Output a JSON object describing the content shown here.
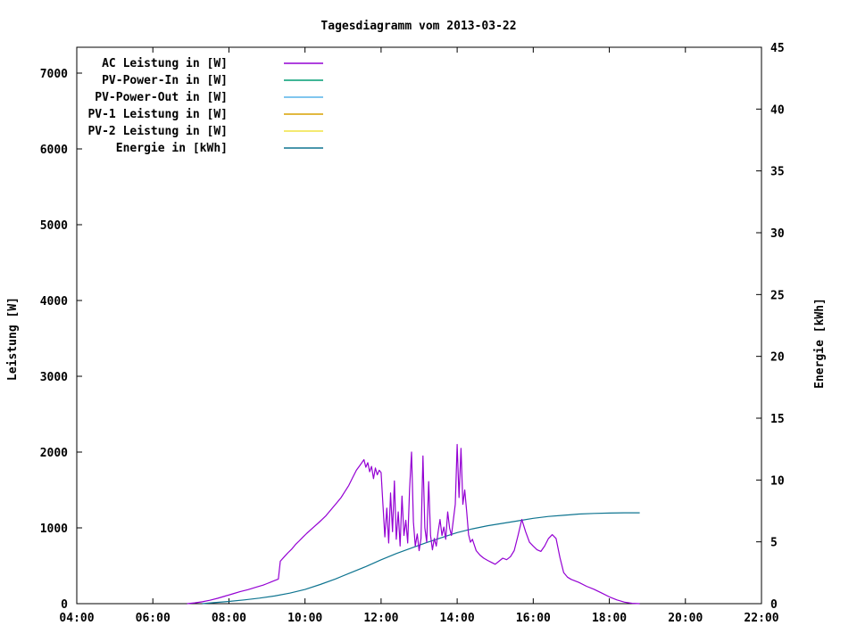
{
  "chart": {
    "title": "Tagesdiagramm vom 2013-03-22",
    "left_axis": {
      "label": "Leistung [W]",
      "ticks": [
        0,
        1000,
        2000,
        3000,
        4000,
        5000,
        6000,
        7000
      ]
    },
    "right_axis": {
      "label": "Energie [kWh]",
      "ticks": [
        0,
        5,
        10,
        15,
        20,
        25,
        30,
        35,
        40,
        45
      ]
    },
    "x_axis": {
      "tick_hours": [
        4,
        6,
        8,
        10,
        12,
        14,
        16,
        18,
        20,
        22
      ],
      "tick_labels": [
        "04:00",
        "06:00",
        "08:00",
        "10:00",
        "12:00",
        "14:00",
        "16:00",
        "18:00",
        "20:00",
        "22:00"
      ]
    }
  },
  "chart_data": {
    "type": "line",
    "title": "Tagesdiagramm vom 2013-03-22",
    "xlabel": "",
    "ylabel_left": "Leistung [W]",
    "ylabel_right": "Energie [kWh]",
    "x_range_hours": [
      4,
      22
    ],
    "left_range": [
      0,
      7350
    ],
    "right_range": [
      0,
      45
    ],
    "grid": false,
    "legend_position": "top-left-inside",
    "series": [
      {
        "name": "AC Leistung in [W]",
        "color": "#9400D3",
        "axis": "left",
        "points": [
          [
            6.9,
            0
          ],
          [
            7.1,
            10
          ],
          [
            7.3,
            25
          ],
          [
            7.5,
            45
          ],
          [
            7.7,
            70
          ],
          [
            7.9,
            100
          ],
          [
            8.1,
            130
          ],
          [
            8.3,
            160
          ],
          [
            8.5,
            185
          ],
          [
            8.7,
            215
          ],
          [
            8.9,
            245
          ],
          [
            9.0,
            265
          ],
          [
            9.1,
            285
          ],
          [
            9.2,
            305
          ],
          [
            9.3,
            325
          ],
          [
            9.35,
            560
          ],
          [
            9.45,
            615
          ],
          [
            9.55,
            670
          ],
          [
            9.65,
            720
          ],
          [
            9.75,
            780
          ],
          [
            9.85,
            830
          ],
          [
            9.95,
            880
          ],
          [
            10.05,
            930
          ],
          [
            10.15,
            975
          ],
          [
            10.25,
            1020
          ],
          [
            10.35,
            1065
          ],
          [
            10.45,
            1110
          ],
          [
            10.55,
            1160
          ],
          [
            10.65,
            1220
          ],
          [
            10.75,
            1280
          ],
          [
            10.85,
            1340
          ],
          [
            10.95,
            1400
          ],
          [
            11.05,
            1480
          ],
          [
            11.15,
            1560
          ],
          [
            11.25,
            1660
          ],
          [
            11.35,
            1760
          ],
          [
            11.45,
            1830
          ],
          [
            11.55,
            1900
          ],
          [
            11.6,
            1800
          ],
          [
            11.65,
            1860
          ],
          [
            11.7,
            1740
          ],
          [
            11.75,
            1810
          ],
          [
            11.8,
            1650
          ],
          [
            11.85,
            1790
          ],
          [
            11.9,
            1700
          ],
          [
            11.95,
            1760
          ],
          [
            12.0,
            1730
          ],
          [
            12.05,
            1300
          ],
          [
            12.1,
            880
          ],
          [
            12.15,
            1260
          ],
          [
            12.2,
            800
          ],
          [
            12.25,
            1460
          ],
          [
            12.3,
            950
          ],
          [
            12.35,
            1620
          ],
          [
            12.4,
            850
          ],
          [
            12.45,
            1210
          ],
          [
            12.5,
            760
          ],
          [
            12.55,
            1420
          ],
          [
            12.6,
            900
          ],
          [
            12.65,
            1100
          ],
          [
            12.7,
            800
          ],
          [
            12.75,
            1510
          ],
          [
            12.8,
            2000
          ],
          [
            12.85,
            1080
          ],
          [
            12.9,
            760
          ],
          [
            12.95,
            920
          ],
          [
            13.0,
            700
          ],
          [
            13.05,
            860
          ],
          [
            13.1,
            1950
          ],
          [
            13.15,
            1000
          ],
          [
            13.2,
            810
          ],
          [
            13.25,
            1610
          ],
          [
            13.3,
            900
          ],
          [
            13.35,
            710
          ],
          [
            13.4,
            860
          ],
          [
            13.45,
            760
          ],
          [
            13.5,
            950
          ],
          [
            13.55,
            1110
          ],
          [
            13.6,
            900
          ],
          [
            13.65,
            1010
          ],
          [
            13.7,
            850
          ],
          [
            13.75,
            1210
          ],
          [
            13.8,
            1000
          ],
          [
            13.85,
            900
          ],
          [
            13.9,
            1110
          ],
          [
            13.95,
            1310
          ],
          [
            14.0,
            2100
          ],
          [
            14.05,
            1400
          ],
          [
            14.1,
            2050
          ],
          [
            14.15,
            1310
          ],
          [
            14.2,
            1500
          ],
          [
            14.25,
            1210
          ],
          [
            14.3,
            910
          ],
          [
            14.35,
            810
          ],
          [
            14.4,
            850
          ],
          [
            14.5,
            700
          ],
          [
            14.6,
            640
          ],
          [
            14.7,
            600
          ],
          [
            14.8,
            570
          ],
          [
            14.9,
            545
          ],
          [
            15.0,
            520
          ],
          [
            15.1,
            560
          ],
          [
            15.2,
            600
          ],
          [
            15.3,
            580
          ],
          [
            15.4,
            620
          ],
          [
            15.5,
            700
          ],
          [
            15.6,
            900
          ],
          [
            15.7,
            1110
          ],
          [
            15.8,
            950
          ],
          [
            15.9,
            810
          ],
          [
            16.0,
            760
          ],
          [
            16.1,
            710
          ],
          [
            16.2,
            690
          ],
          [
            16.3,
            760
          ],
          [
            16.4,
            860
          ],
          [
            16.5,
            910
          ],
          [
            16.6,
            860
          ],
          [
            16.7,
            610
          ],
          [
            16.8,
            410
          ],
          [
            16.9,
            350
          ],
          [
            17.0,
            320
          ],
          [
            17.2,
            280
          ],
          [
            17.4,
            230
          ],
          [
            17.6,
            190
          ],
          [
            17.8,
            140
          ],
          [
            18.0,
            90
          ],
          [
            18.2,
            50
          ],
          [
            18.4,
            20
          ],
          [
            18.6,
            5
          ],
          [
            18.8,
            0
          ]
        ]
      },
      {
        "name": "PV-Power-In in [W]",
        "color": "#009E73",
        "axis": "left",
        "points": []
      },
      {
        "name": "PV-Power-Out in [W]",
        "color": "#56B4E9",
        "axis": "left",
        "points": []
      },
      {
        "name": "PV-1 Leistung in [W]",
        "color": "#D8A000",
        "axis": "left",
        "points": []
      },
      {
        "name": "PV-2 Leistung in [W]",
        "color": "#F0E442",
        "axis": "left",
        "points": []
      },
      {
        "name": "Energie in [kWh]",
        "color": "#0E7490",
        "axis": "right",
        "points": [
          [
            7.3,
            0
          ],
          [
            7.6,
            0.08
          ],
          [
            8.0,
            0.18
          ],
          [
            8.4,
            0.3
          ],
          [
            8.8,
            0.45
          ],
          [
            9.2,
            0.62
          ],
          [
            9.6,
            0.85
          ],
          [
            10.0,
            1.15
          ],
          [
            10.4,
            1.55
          ],
          [
            10.8,
            2.0
          ],
          [
            11.2,
            2.5
          ],
          [
            11.6,
            3.0
          ],
          [
            12.0,
            3.55
          ],
          [
            12.4,
            4.05
          ],
          [
            12.8,
            4.5
          ],
          [
            13.2,
            4.95
          ],
          [
            13.6,
            5.35
          ],
          [
            14.0,
            5.75
          ],
          [
            14.4,
            6.05
          ],
          [
            14.8,
            6.3
          ],
          [
            15.2,
            6.5
          ],
          [
            15.6,
            6.7
          ],
          [
            16.0,
            6.9
          ],
          [
            16.4,
            7.05
          ],
          [
            16.8,
            7.15
          ],
          [
            17.2,
            7.25
          ],
          [
            17.6,
            7.3
          ],
          [
            18.0,
            7.33
          ],
          [
            18.4,
            7.35
          ],
          [
            18.8,
            7.35
          ]
        ]
      }
    ]
  }
}
